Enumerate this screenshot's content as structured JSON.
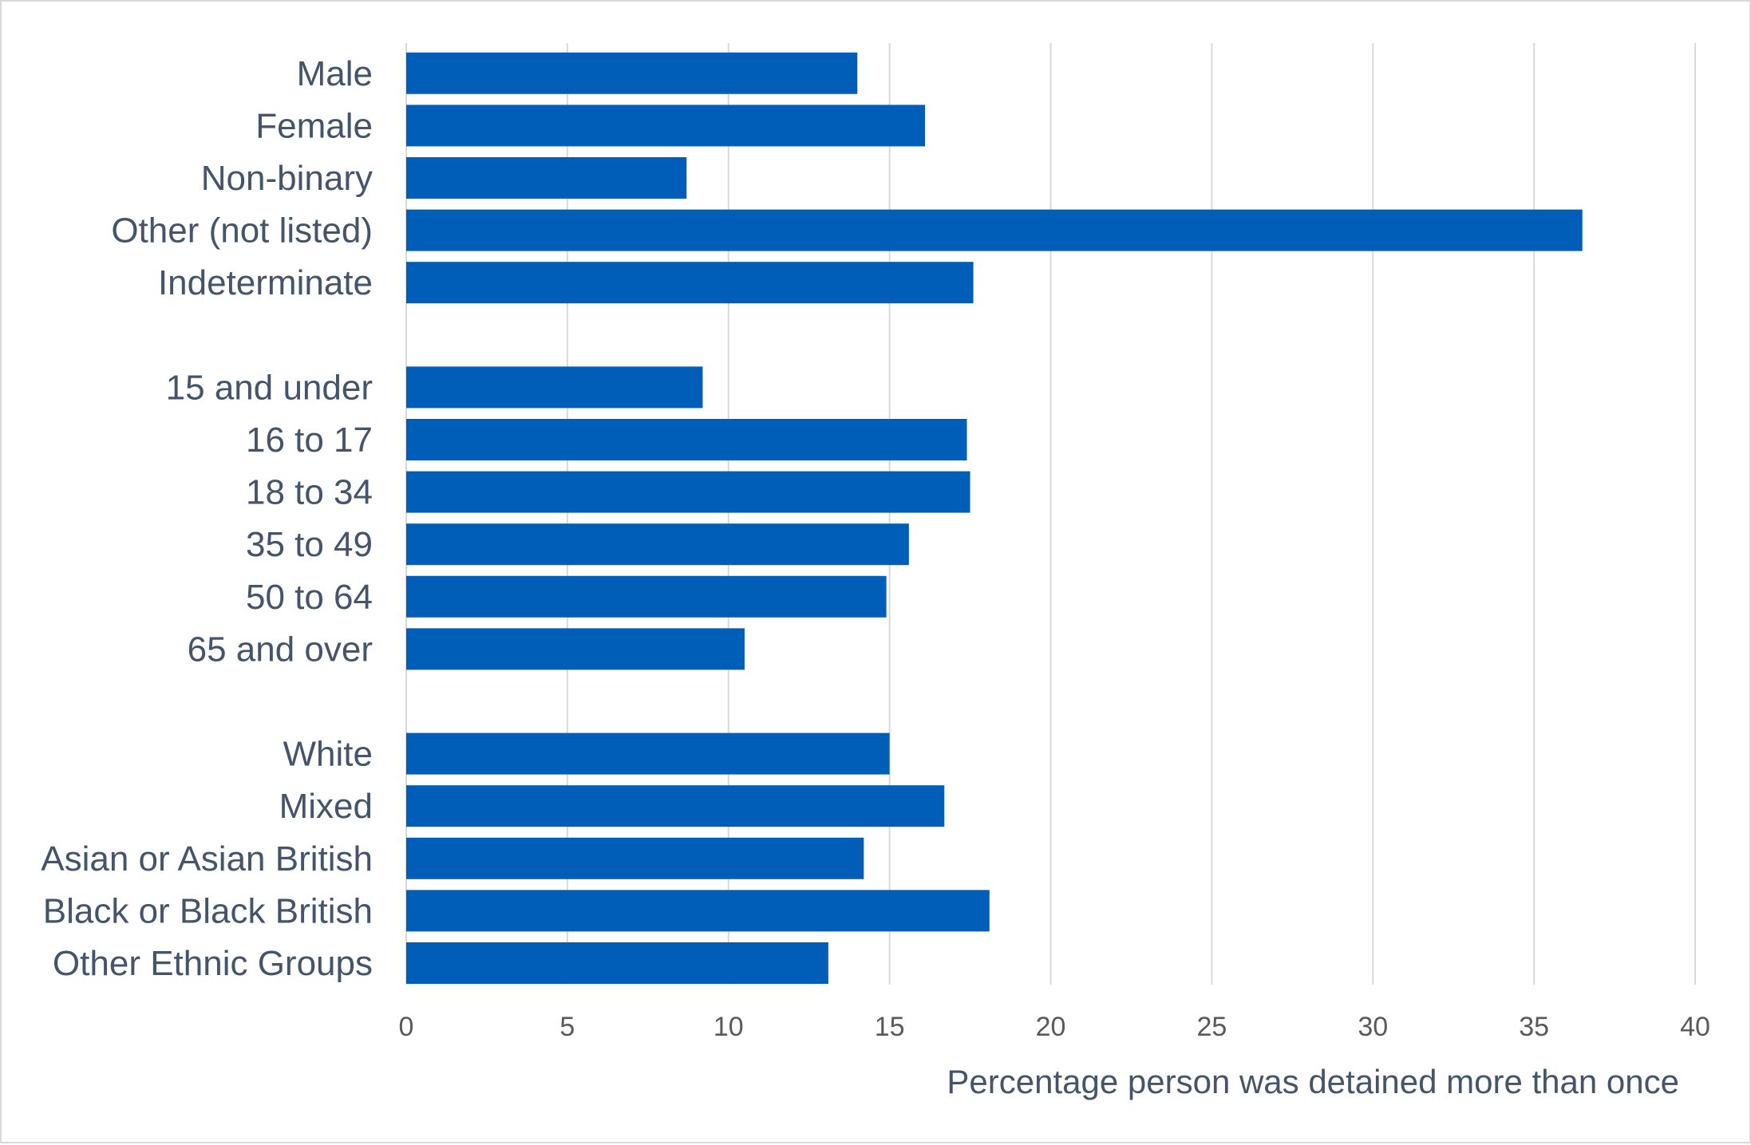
{
  "chart_data": {
    "type": "bar",
    "orientation": "horizontal",
    "categories": [
      "Male",
      "Female",
      "Non-binary",
      "Other (not listed)",
      "Indeterminate",
      "",
      "15 and under",
      "16 to 17",
      "18 to 34",
      "35 to 49",
      "50 to 64",
      "65 and over",
      "",
      "White",
      "Mixed",
      "Asian or Asian British",
      "Black or Black British",
      "Other Ethnic Groups"
    ],
    "values": [
      14.0,
      16.1,
      8.7,
      36.5,
      17.6,
      null,
      9.2,
      17.4,
      17.5,
      15.6,
      14.9,
      10.5,
      null,
      15.0,
      16.7,
      14.2,
      18.1,
      13.1
    ],
    "xlabel": "Percentage person was detained more than once",
    "ylabel": "",
    "xlim": [
      0,
      40
    ],
    "xticks": [
      "0",
      "5",
      "10",
      "15",
      "20",
      "25",
      "30",
      "35",
      "40"
    ],
    "grid": "vertical",
    "bar_color": "#005EB8"
  }
}
